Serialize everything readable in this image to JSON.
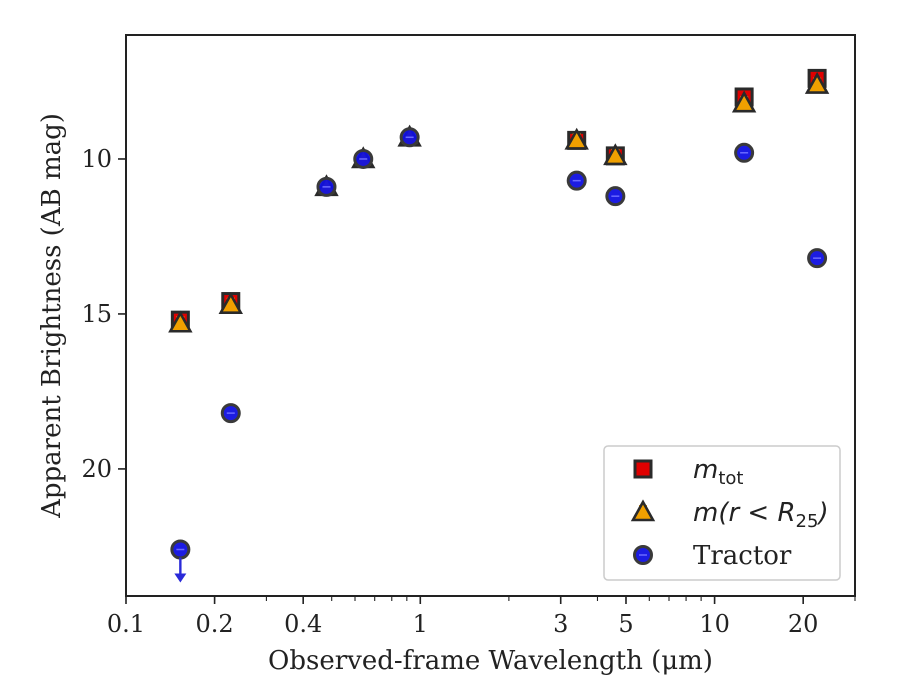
{
  "chart_data": {
    "type": "scatter",
    "xlabel": "Observed-frame Wavelength (μm)",
    "ylabel": "Apparent Brightness (AB mag)",
    "xscale": "log",
    "xlim": [
      0.1,
      30
    ],
    "ylim": [
      24.1,
      6.0
    ],
    "y_inverted": true,
    "x_ticks": [
      {
        "value": 0.1,
        "label": "0.1"
      },
      {
        "value": 0.2,
        "label": "0.2"
      },
      {
        "value": 0.4,
        "label": "0.4"
      },
      {
        "value": 1,
        "label": "1"
      },
      {
        "value": 3,
        "label": "3"
      },
      {
        "value": 5,
        "label": "5"
      },
      {
        "value": 10,
        "label": "10"
      },
      {
        "value": 20,
        "label": "20"
      }
    ],
    "y_ticks": [
      {
        "value": 10,
        "label": "10"
      },
      {
        "value": 15,
        "label": "15"
      },
      {
        "value": 20,
        "label": "20"
      }
    ],
    "grid": false,
    "legend_position": "bottom-right",
    "series": [
      {
        "name": "m_tot",
        "label_main": "m",
        "label_sub": "tot",
        "marker": "square",
        "color": "#e00000",
        "edge": "#2a2a2a",
        "points": [
          {
            "x": 0.153,
            "y": 15.2
          },
          {
            "x": 0.227,
            "y": 14.6
          },
          {
            "x": 3.4,
            "y": 9.4
          },
          {
            "x": 4.6,
            "y": 9.9
          },
          {
            "x": 12.6,
            "y": 8.0
          },
          {
            "x": 22.3,
            "y": 7.4
          }
        ]
      },
      {
        "name": "m(r < R25)",
        "label_main": "m(r < R",
        "label_sub": "25",
        "label_end": ")",
        "marker": "triangle",
        "color": "#f0a000",
        "edge": "#2a2a2a",
        "points": [
          {
            "x": 0.153,
            "y": 15.3
          },
          {
            "x": 0.227,
            "y": 14.7
          },
          {
            "x": 0.48,
            "y": 10.9
          },
          {
            "x": 0.64,
            "y": 10.0
          },
          {
            "x": 0.92,
            "y": 9.3
          },
          {
            "x": 3.4,
            "y": 9.4
          },
          {
            "x": 4.6,
            "y": 9.9
          },
          {
            "x": 12.6,
            "y": 8.2
          },
          {
            "x": 22.3,
            "y": 7.6
          }
        ]
      },
      {
        "name": "Tractor",
        "label_main": "Tractor",
        "marker": "circle",
        "color": "#1010e0",
        "edge": "#3a3a3a",
        "points": [
          {
            "x": 0.153,
            "y": 22.6,
            "upper_limit": true
          },
          {
            "x": 0.227,
            "y": 18.2
          },
          {
            "x": 0.48,
            "y": 10.9
          },
          {
            "x": 0.64,
            "y": 10.0
          },
          {
            "x": 0.92,
            "y": 9.3
          },
          {
            "x": 3.4,
            "y": 10.7
          },
          {
            "x": 4.6,
            "y": 11.2
          },
          {
            "x": 12.6,
            "y": 9.8
          },
          {
            "x": 22.3,
            "y": 13.2
          }
        ]
      }
    ]
  }
}
